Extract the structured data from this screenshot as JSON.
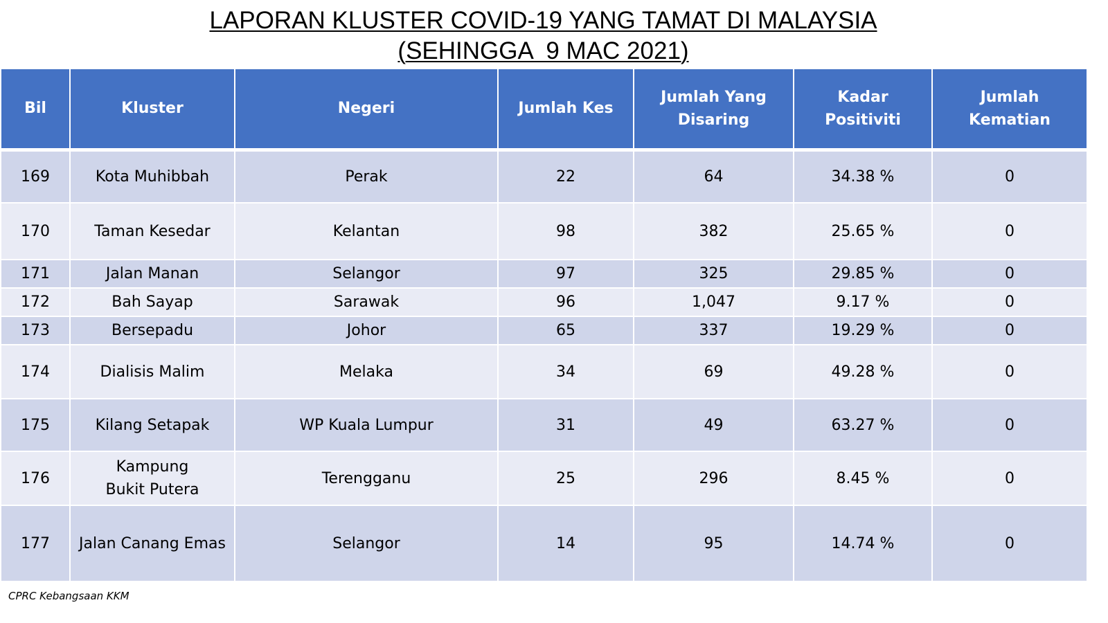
{
  "title": {
    "line1": "LAPORAN KLUSTER COVID-19 YANG TAMAT DI MALAYSIA",
    "line2": "(SEHINGGA  9 MAC 2021)"
  },
  "table": {
    "headers": {
      "bil": "Bil",
      "kluster": "Kluster",
      "negeri": "Negeri",
      "jumlah_kes": "Jumlah Kes",
      "jumlah_disaring_line1": "Jumlah Yang",
      "jumlah_disaring_line2": "Disaring",
      "kadar_positiviti": "Kadar Positiviti",
      "jumlah_kematian": "Jumlah Kematian"
    },
    "rows": [
      {
        "bil": "169",
        "kluster": "Kota Muhibbah",
        "negeri": "Perak",
        "kes": "22",
        "disaring": "64",
        "positiviti": "34.38 %",
        "kematian": "0"
      },
      {
        "bil": "170",
        "kluster": "Taman Kesedar",
        "negeri": "Kelantan",
        "kes": "98",
        "disaring": "382",
        "positiviti": "25.65 %",
        "kematian": "0"
      },
      {
        "bil": "171",
        "kluster": "Jalan Manan",
        "negeri": "Selangor",
        "kes": "97",
        "disaring": "325",
        "positiviti": "29.85 %",
        "kematian": "0"
      },
      {
        "bil": "172",
        "kluster": "Bah Sayap",
        "negeri": "Sarawak",
        "kes": "96",
        "disaring": "1,047",
        "positiviti": "9.17 %",
        "kematian": "0"
      },
      {
        "bil": "173",
        "kluster": "Bersepadu",
        "negeri": "Johor",
        "kes": "65",
        "disaring": "337",
        "positiviti": "19.29 %",
        "kematian": "0"
      },
      {
        "bil": "174",
        "kluster": "Dialisis Malim",
        "negeri": "Melaka",
        "kes": "34",
        "disaring": "69",
        "positiviti": "49.28 %",
        "kematian": "0"
      },
      {
        "bil": "175",
        "kluster": "Kilang Setapak",
        "negeri": "WP Kuala Lumpur",
        "kes": "31",
        "disaring": "49",
        "positiviti": "63.27 %",
        "kematian": "0"
      },
      {
        "bil": "176",
        "kluster_line1": "Kampung",
        "kluster_line2": "Bukit Putera",
        "negeri": "Terengganu",
        "kes": "25",
        "disaring": "296",
        "positiviti": "8.45 %",
        "kematian": "0"
      },
      {
        "bil": "177",
        "kluster": "Jalan Canang Emas",
        "negeri": "Selangor",
        "kes": "14",
        "disaring": "95",
        "positiviti": "14.74 %",
        "kematian": "0"
      }
    ]
  },
  "source": "CPRC Kebangsaan KKM"
}
